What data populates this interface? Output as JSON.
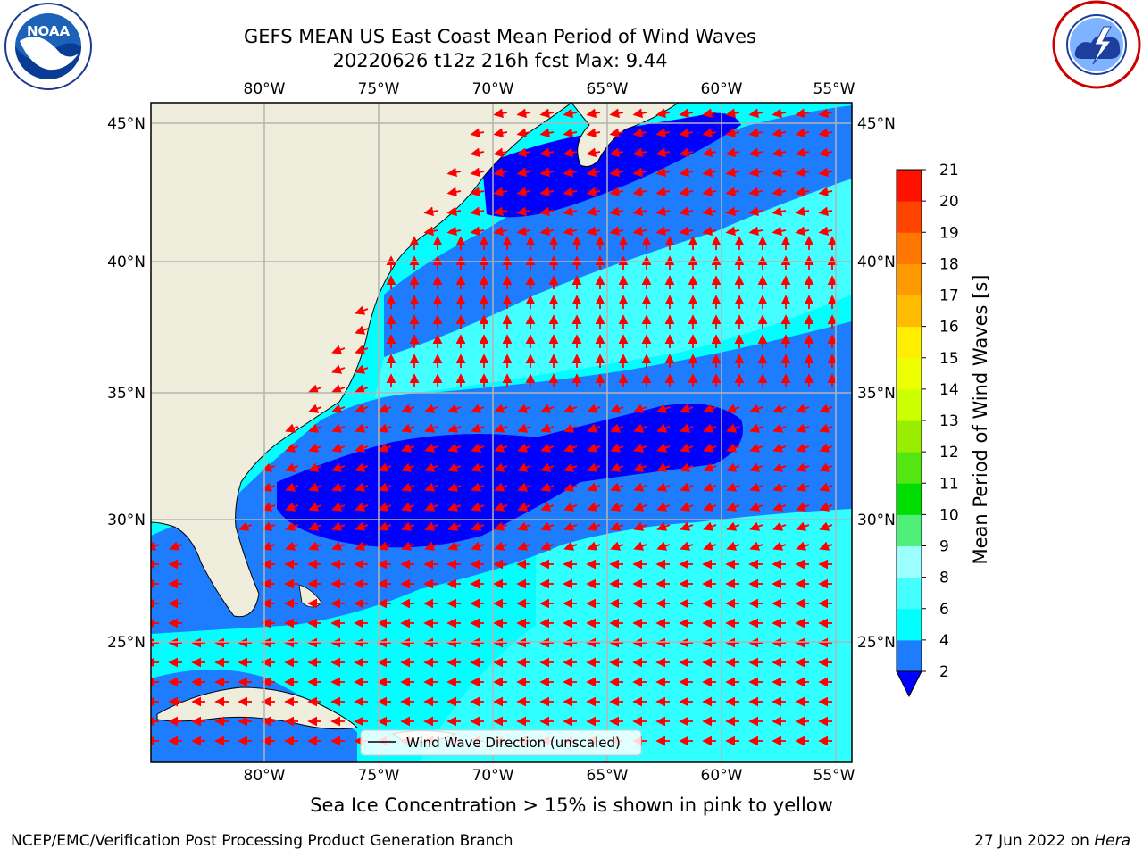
{
  "title": {
    "line1": "GEFS MEAN US East Coast Mean Period of Wind Waves",
    "line2": "20220626 t12z 216h fcst   Max: 9.44"
  },
  "map": {
    "region": "US East Coast / Western North Atlantic",
    "lon_range": [
      -85,
      -54.2
    ],
    "lat_range": [
      20.5,
      46
    ],
    "lon_ticks": [
      "80°W",
      "75°W",
      "70°W",
      "65°W",
      "60°W",
      "55°W"
    ],
    "lat_ticks": [
      "45°N",
      "40°N",
      "35°N",
      "30°N",
      "25°N"
    ],
    "gridlines": true,
    "land_color": "#efeedc",
    "vector_color": "#ff0000"
  },
  "legend": {
    "label": "Wind Wave Direction (unscaled)",
    "placement": "bottom-center"
  },
  "colorbar": {
    "label": "Mean Period of Wind Waves [s]",
    "ticks": [
      "2",
      "4",
      "6",
      "8",
      "9",
      "10",
      "11",
      "12",
      "13",
      "14",
      "15",
      "16",
      "17",
      "18",
      "19",
      "20",
      "21"
    ],
    "colors": [
      "#0000ff",
      "#1e7cff",
      "#00ffff",
      "#44ffff",
      "#9cffff",
      "#4ef07a",
      "#00dd00",
      "#53e611",
      "#99ee00",
      "#ccff00",
      "#eeff00",
      "#ffee00",
      "#ffbb00",
      "#ff9900",
      "#ff7700",
      "#ff4400",
      "#ff1100"
    ],
    "underflow_color": "#0000ff"
  },
  "caption": "Sea Ice Concentration > 15% is shown in pink to yellow",
  "footer": {
    "left": "NCEP/EMC/Verification Post Processing Product Generation Branch",
    "date": "27 Jun 2022 on ",
    "machine": "Hera"
  },
  "logos": {
    "noaa": "NOAA",
    "noaa_ring": "NATIONAL OCEANIC AND ATMOSPHERIC ADMINISTRATION · U.S. DEPARTMENT OF COMMERCE",
    "nws_ring": "NATIONAL WEATHER SERVICE"
  },
  "icons": {
    "noaa_logo": "noaa-logo",
    "nws_logo": "nws-logo"
  }
}
